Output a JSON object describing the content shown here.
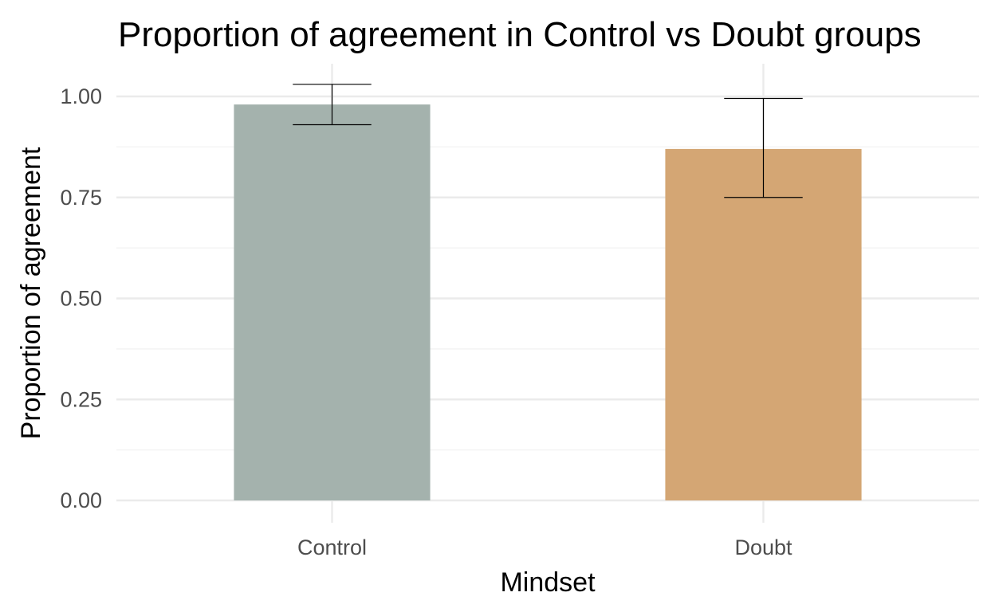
{
  "chart_data": {
    "type": "bar",
    "title": "Proportion of agreement in Control vs Doubt groups",
    "xlabel": "Mindset",
    "ylabel": "Proportion of agreement",
    "categories": [
      "Control",
      "Doubt"
    ],
    "values": [
      0.98,
      0.87
    ],
    "error_bars": [
      {
        "low": 0.93,
        "high": 1.03
      },
      {
        "low": 0.75,
        "high": 0.995
      }
    ],
    "colors": [
      "#a1b0aa",
      "#d3a370"
    ],
    "ylim": [
      0,
      1.08
    ],
    "yticks": [
      0.0,
      0.25,
      0.5,
      0.75,
      1.0
    ],
    "ytick_labels": [
      "0.00",
      "0.25",
      "0.50",
      "0.75",
      "1.00"
    ],
    "grid": true,
    "legend": "none"
  }
}
